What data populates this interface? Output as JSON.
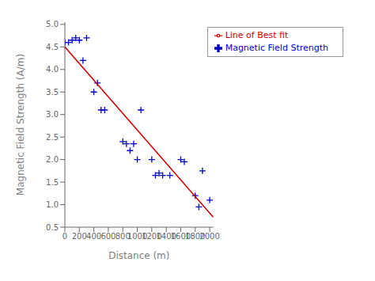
{
  "chart_data": {
    "type": "scatter",
    "xlabel": "Distance (m)",
    "ylabel": "Magnetic Field Strength (A/m)",
    "series": [
      {
        "name": "Magnetic Field Strength",
        "type": "scatter",
        "marker": "plus",
        "color": "#0000cc",
        "x": [
          0,
          50,
          100,
          150,
          200,
          250,
          300,
          400,
          450,
          500,
          550,
          800,
          850,
          900,
          950,
          1000,
          1050,
          1200,
          1250,
          1300,
          1350,
          1450,
          1600,
          1650,
          1800,
          1850,
          1900,
          2000
        ],
        "values": [
          4.6,
          4.6,
          4.65,
          4.7,
          4.65,
          4.2,
          4.7,
          3.5,
          3.7,
          3.1,
          3.1,
          2.4,
          2.35,
          2.2,
          2.35,
          2.0,
          3.1,
          2.0,
          1.65,
          1.7,
          1.65,
          1.65,
          2.0,
          1.95,
          1.2,
          0.95,
          1.75,
          1.1
        ]
      },
      {
        "name": "Line of Best fit",
        "type": "line",
        "color": "#cc0000",
        "x": [
          0,
          2050
        ],
        "values": [
          4.5,
          0.72
        ]
      }
    ],
    "xlim": [
      0,
      2050
    ],
    "ylim": [
      0.5,
      5.05
    ],
    "xticks": [
      0,
      200,
      400,
      600,
      800,
      1000,
      1200,
      1400,
      1600,
      1800,
      2000
    ],
    "yticks": [
      0.5,
      {
        "value": 1,
        "label": "1.0"
      },
      1.5,
      {
        "value": 2,
        "label": "2.0"
      },
      2.5,
      {
        "value": 3,
        "label": "3.0"
      },
      3.5,
      {
        "value": 4,
        "label": "4.0"
      },
      4.5,
      {
        "value": 5,
        "label": "5.0"
      }
    ],
    "grid": false,
    "legend": "upper right"
  }
}
